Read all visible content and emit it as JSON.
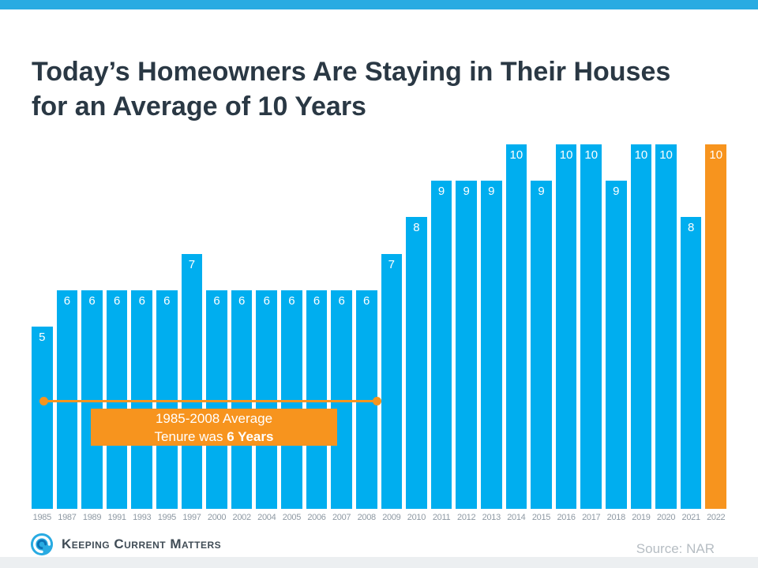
{
  "top_bar_color": "#29ABE2",
  "title": "Today’s Homeowners Are Staying in Their Houses for an Average of 10 Years",
  "chart_data": {
    "type": "bar",
    "title": "Today’s Homeowners Are Staying in Their Houses for an Average of 10 Years",
    "categories": [
      "1985",
      "1987",
      "1989",
      "1991",
      "1993",
      "1995",
      "1997",
      "2000",
      "2002",
      "2004",
      "2005",
      "2006",
      "2007",
      "2008",
      "2009",
      "2010",
      "2011",
      "2012",
      "2013",
      "2014",
      "2015",
      "2016",
      "2017",
      "2018",
      "2019",
      "2020",
      "2021",
      "2022"
    ],
    "values": [
      5,
      6,
      6,
      6,
      6,
      6,
      7,
      6,
      6,
      6,
      6,
      6,
      6,
      6,
      7,
      8,
      9,
      9,
      9,
      10,
      9,
      10,
      10,
      9,
      10,
      10,
      8,
      10
    ],
    "xlabel": "",
    "ylabel": "",
    "ylim": [
      0,
      10
    ],
    "grid": false,
    "legend": "none",
    "data_labels": "inside-top, white",
    "colors": {
      "default": "#00AEEF",
      "highlight": "#F7941E"
    },
    "highlight_index": 27,
    "annotation": {
      "text": "1985-2008 Average Tenure was 6 Years",
      "span_years": "1985-2008"
    }
  },
  "annotation": {
    "line1": "1985-2008 Average",
    "line2_regular": "Tenure was ",
    "line2_bold": "6 Years"
  },
  "footer": {
    "brand": "Keeping Current Matters",
    "source": "Source: NAR"
  }
}
